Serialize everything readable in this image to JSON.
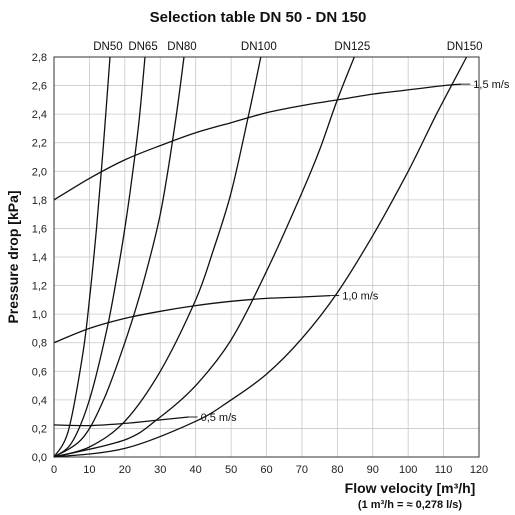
{
  "chart_data": {
    "type": "line",
    "title": "Selection table DN 50 - DN 150",
    "xlabel": "Flow velocity [m³/h]",
    "xlabel_note": "(1 m³/h = ≈ 0,278 l/s)",
    "ylabel": "Pressure drop [kPa]",
    "xlim": [
      0,
      120
    ],
    "ylim": [
      0,
      2.8
    ],
    "x_ticks": [
      "0",
      "10",
      "20",
      "30",
      "40",
      "50",
      "60",
      "70",
      "80",
      "90",
      "100",
      "110",
      "120"
    ],
    "y_ticks": [
      "0,0",
      "0,2",
      "0,4",
      "0,6",
      "0,8",
      "1,0",
      "1,2",
      "1,4",
      "1,6",
      "1,8",
      "2,0",
      "2,2",
      "2,4",
      "2,6",
      "2,8"
    ],
    "grid": true,
    "dn_series": [
      {
        "name": "DN50",
        "x": [
          0,
          4,
          8,
          10,
          12,
          14,
          15.8
        ],
        "y": [
          0,
          0.18,
          0.7,
          1.1,
          1.6,
          2.2,
          2.8
        ]
      },
      {
        "name": "DN65",
        "x": [
          0,
          5,
          10,
          15,
          18,
          20,
          22,
          24,
          25.7
        ],
        "y": [
          0,
          0.1,
          0.4,
          0.9,
          1.3,
          1.6,
          1.95,
          2.35,
          2.8
        ]
      },
      {
        "name": "DN80",
        "x": [
          0,
          8,
          14,
          20,
          25,
          30,
          34,
          36.7
        ],
        "y": [
          0,
          0.13,
          0.4,
          0.8,
          1.2,
          1.7,
          2.3,
          2.8
        ]
      },
      {
        "name": "DN100",
        "x": [
          0,
          10,
          20,
          30,
          40,
          45,
          50,
          55,
          58.4
        ],
        "y": [
          0,
          0.07,
          0.25,
          0.6,
          1.1,
          1.45,
          1.85,
          2.4,
          2.8
        ]
      },
      {
        "name": "DN125",
        "x": [
          0,
          20,
          30,
          40,
          50,
          60,
          70,
          75,
          80,
          84.8
        ],
        "y": [
          0,
          0.12,
          0.28,
          0.5,
          0.82,
          1.3,
          1.85,
          2.15,
          2.5,
          2.8
        ]
      },
      {
        "name": "DN150",
        "x": [
          0,
          20,
          40,
          50,
          60,
          70,
          80,
          90,
          100,
          108,
          116.5
        ],
        "y": [
          0,
          0.06,
          0.25,
          0.4,
          0.58,
          0.83,
          1.15,
          1.55,
          2.0,
          2.4,
          2.8
        ]
      }
    ],
    "velocity_series": [
      {
        "name": "0,5 m/s",
        "x": [
          0,
          10,
          20,
          30,
          38
        ],
        "y": [
          0.225,
          0.22,
          0.235,
          0.26,
          0.28
        ]
      },
      {
        "name": "1,0 m/s",
        "x": [
          0,
          10,
          20,
          30,
          40,
          50,
          60,
          70,
          78
        ],
        "y": [
          0.8,
          0.9,
          0.97,
          1.02,
          1.06,
          1.09,
          1.11,
          1.12,
          1.13
        ]
      },
      {
        "name": "1,5 m/s",
        "x": [
          0,
          10,
          20,
          30,
          40,
          50,
          60,
          70,
          80,
          90,
          100,
          110,
          115
        ],
        "y": [
          1.8,
          1.95,
          2.08,
          2.18,
          2.27,
          2.34,
          2.41,
          2.46,
          2.5,
          2.54,
          2.57,
          2.6,
          2.61
        ]
      }
    ]
  }
}
